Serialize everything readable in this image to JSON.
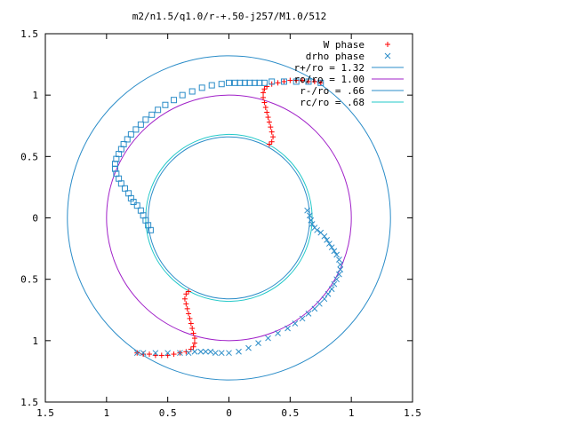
{
  "chart_data": {
    "type": "scatter",
    "title": "m2/n1.5/q1.0/r-+.50-j257/M1.0/512",
    "xlabel": "",
    "ylabel": "",
    "xlim": [
      -1.5,
      1.5
    ],
    "ylim": [
      -1.5,
      1.5
    ],
    "grid": false,
    "legend_position": "top-right",
    "x_ticks": [
      -1.5,
      -1,
      -0.5,
      0,
      0.5,
      1,
      1.5
    ],
    "x_tick_labels": [
      "1.5",
      "1",
      "0.5",
      "0",
      "0.5",
      "1",
      "1.5"
    ],
    "y_ticks": [
      1.5,
      1,
      0.5,
      0,
      -0.5,
      -1,
      -1.5
    ],
    "y_tick_labels": [
      "1.5",
      "1",
      "0.5",
      "0",
      "0.5",
      "1",
      "1.5"
    ],
    "circles": [
      {
        "name": "r+/ro = 1.32",
        "radius": 1.32,
        "color": "#2a8cc8"
      },
      {
        "name": "ro/ro = 1.00",
        "radius": 1.0,
        "color": "#a020c8"
      },
      {
        "name": "r-/ro = .66",
        "radius": 0.66,
        "color": "#2a8cc8"
      },
      {
        "name": "rc/ro = .68",
        "radius": 0.68,
        "color": "#20c8c8"
      }
    ],
    "series": [
      {
        "name": "W phase",
        "marker": "+",
        "color": "#ff0000",
        "points": [
          [
            0.33,
            0.6
          ],
          [
            0.35,
            0.62
          ],
          [
            0.36,
            0.66
          ],
          [
            0.35,
            0.7
          ],
          [
            0.34,
            0.74
          ],
          [
            0.33,
            0.78
          ],
          [
            0.32,
            0.82
          ],
          [
            0.31,
            0.86
          ],
          [
            0.3,
            0.9
          ],
          [
            0.29,
            0.94
          ],
          [
            0.28,
            0.98
          ],
          [
            0.28,
            1.02
          ],
          [
            0.29,
            1.05
          ],
          [
            0.31,
            1.07
          ],
          [
            0.35,
            1.09
          ],
          [
            0.4,
            1.1
          ],
          [
            0.45,
            1.11
          ],
          [
            0.5,
            1.12
          ],
          [
            0.55,
            1.12
          ],
          [
            0.6,
            1.12
          ],
          [
            0.65,
            1.11
          ],
          [
            0.7,
            1.11
          ],
          [
            0.75,
            1.1
          ],
          [
            -0.33,
            -0.6
          ],
          [
            -0.35,
            -0.62
          ],
          [
            -0.36,
            -0.66
          ],
          [
            -0.35,
            -0.7
          ],
          [
            -0.34,
            -0.74
          ],
          [
            -0.33,
            -0.78
          ],
          [
            -0.32,
            -0.82
          ],
          [
            -0.31,
            -0.86
          ],
          [
            -0.3,
            -0.9
          ],
          [
            -0.29,
            -0.94
          ],
          [
            -0.28,
            -0.98
          ],
          [
            -0.28,
            -1.02
          ],
          [
            -0.29,
            -1.05
          ],
          [
            -0.31,
            -1.07
          ],
          [
            -0.35,
            -1.09
          ],
          [
            -0.4,
            -1.1
          ],
          [
            -0.45,
            -1.11
          ],
          [
            -0.5,
            -1.12
          ],
          [
            -0.55,
            -1.12
          ],
          [
            -0.6,
            -1.12
          ],
          [
            -0.65,
            -1.11
          ],
          [
            -0.7,
            -1.11
          ],
          [
            -0.75,
            -1.1
          ]
        ]
      },
      {
        "name": "drho phase",
        "marker": "x",
        "color": "#2a8cc8",
        "points": [
          [
            0.64,
            0.06
          ],
          [
            0.66,
            0.02
          ],
          [
            0.67,
            -0.02
          ],
          [
            0.68,
            -0.05
          ],
          [
            0.7,
            -0.08
          ],
          [
            0.72,
            -0.1
          ],
          [
            0.75,
            -0.12
          ],
          [
            0.78,
            -0.15
          ],
          [
            0.8,
            -0.18
          ],
          [
            0.82,
            -0.21
          ],
          [
            0.84,
            -0.24
          ],
          [
            0.86,
            -0.27
          ],
          [
            0.88,
            -0.3
          ],
          [
            0.9,
            -0.34
          ],
          [
            0.91,
            -0.38
          ],
          [
            0.91,
            -0.42
          ],
          [
            0.9,
            -0.46
          ],
          [
            0.88,
            -0.5
          ],
          [
            0.86,
            -0.54
          ],
          [
            0.84,
            -0.58
          ],
          [
            0.81,
            -0.62
          ],
          [
            0.78,
            -0.66
          ],
          [
            0.74,
            -0.7
          ],
          [
            0.7,
            -0.74
          ],
          [
            0.65,
            -0.78
          ],
          [
            0.6,
            -0.82
          ],
          [
            0.54,
            -0.86
          ],
          [
            0.48,
            -0.9
          ],
          [
            0.4,
            -0.94
          ],
          [
            0.32,
            -0.98
          ],
          [
            0.24,
            -1.02
          ],
          [
            0.16,
            -1.06
          ],
          [
            0.08,
            -1.09
          ],
          [
            0.0,
            -1.1
          ],
          [
            -0.06,
            -1.1
          ],
          [
            -0.11,
            -1.1
          ],
          [
            -0.15,
            -1.09
          ],
          [
            -0.19,
            -1.09
          ],
          [
            -0.23,
            -1.09
          ],
          [
            -0.28,
            -1.09
          ],
          [
            -0.33,
            -1.1
          ],
          [
            -0.4,
            -1.1
          ],
          [
            -0.5,
            -1.1
          ],
          [
            -0.6,
            -1.1
          ],
          [
            -0.7,
            -1.1
          ],
          [
            -0.75,
            -1.1
          ]
        ]
      },
      {
        "name": "drho phase",
        "marker": "square",
        "color": "#2a8cc8",
        "points": [
          [
            -0.64,
            -0.1
          ],
          [
            -0.66,
            -0.06
          ],
          [
            -0.68,
            -0.02
          ],
          [
            -0.7,
            0.02
          ],
          [
            -0.72,
            0.06
          ],
          [
            -0.75,
            0.1
          ],
          [
            -0.78,
            0.13
          ],
          [
            -0.8,
            0.16
          ],
          [
            -0.82,
            0.2
          ],
          [
            -0.85,
            0.24
          ],
          [
            -0.88,
            0.28
          ],
          [
            -0.9,
            0.32
          ],
          [
            -0.92,
            0.36
          ],
          [
            -0.93,
            0.4
          ],
          [
            -0.93,
            0.44
          ],
          [
            -0.92,
            0.48
          ],
          [
            -0.9,
            0.52
          ],
          [
            -0.88,
            0.56
          ],
          [
            -0.86,
            0.6
          ],
          [
            -0.83,
            0.64
          ],
          [
            -0.8,
            0.68
          ],
          [
            -0.76,
            0.72
          ],
          [
            -0.72,
            0.76
          ],
          [
            -0.68,
            0.8
          ],
          [
            -0.63,
            0.84
          ],
          [
            -0.58,
            0.88
          ],
          [
            -0.52,
            0.92
          ],
          [
            -0.45,
            0.96
          ],
          [
            -0.38,
            1.0
          ],
          [
            -0.3,
            1.03
          ],
          [
            -0.22,
            1.06
          ],
          [
            -0.14,
            1.08
          ],
          [
            -0.06,
            1.09
          ],
          [
            0.0,
            1.1
          ],
          [
            0.05,
            1.1
          ],
          [
            0.09,
            1.1
          ],
          [
            0.13,
            1.1
          ],
          [
            0.17,
            1.1
          ],
          [
            0.21,
            1.1
          ],
          [
            0.25,
            1.1
          ],
          [
            0.29,
            1.1
          ],
          [
            0.35,
            1.11
          ],
          [
            0.45,
            1.11
          ],
          [
            0.55,
            1.11
          ],
          [
            0.65,
            1.11
          ],
          [
            0.75,
            1.1
          ]
        ]
      }
    ]
  }
}
